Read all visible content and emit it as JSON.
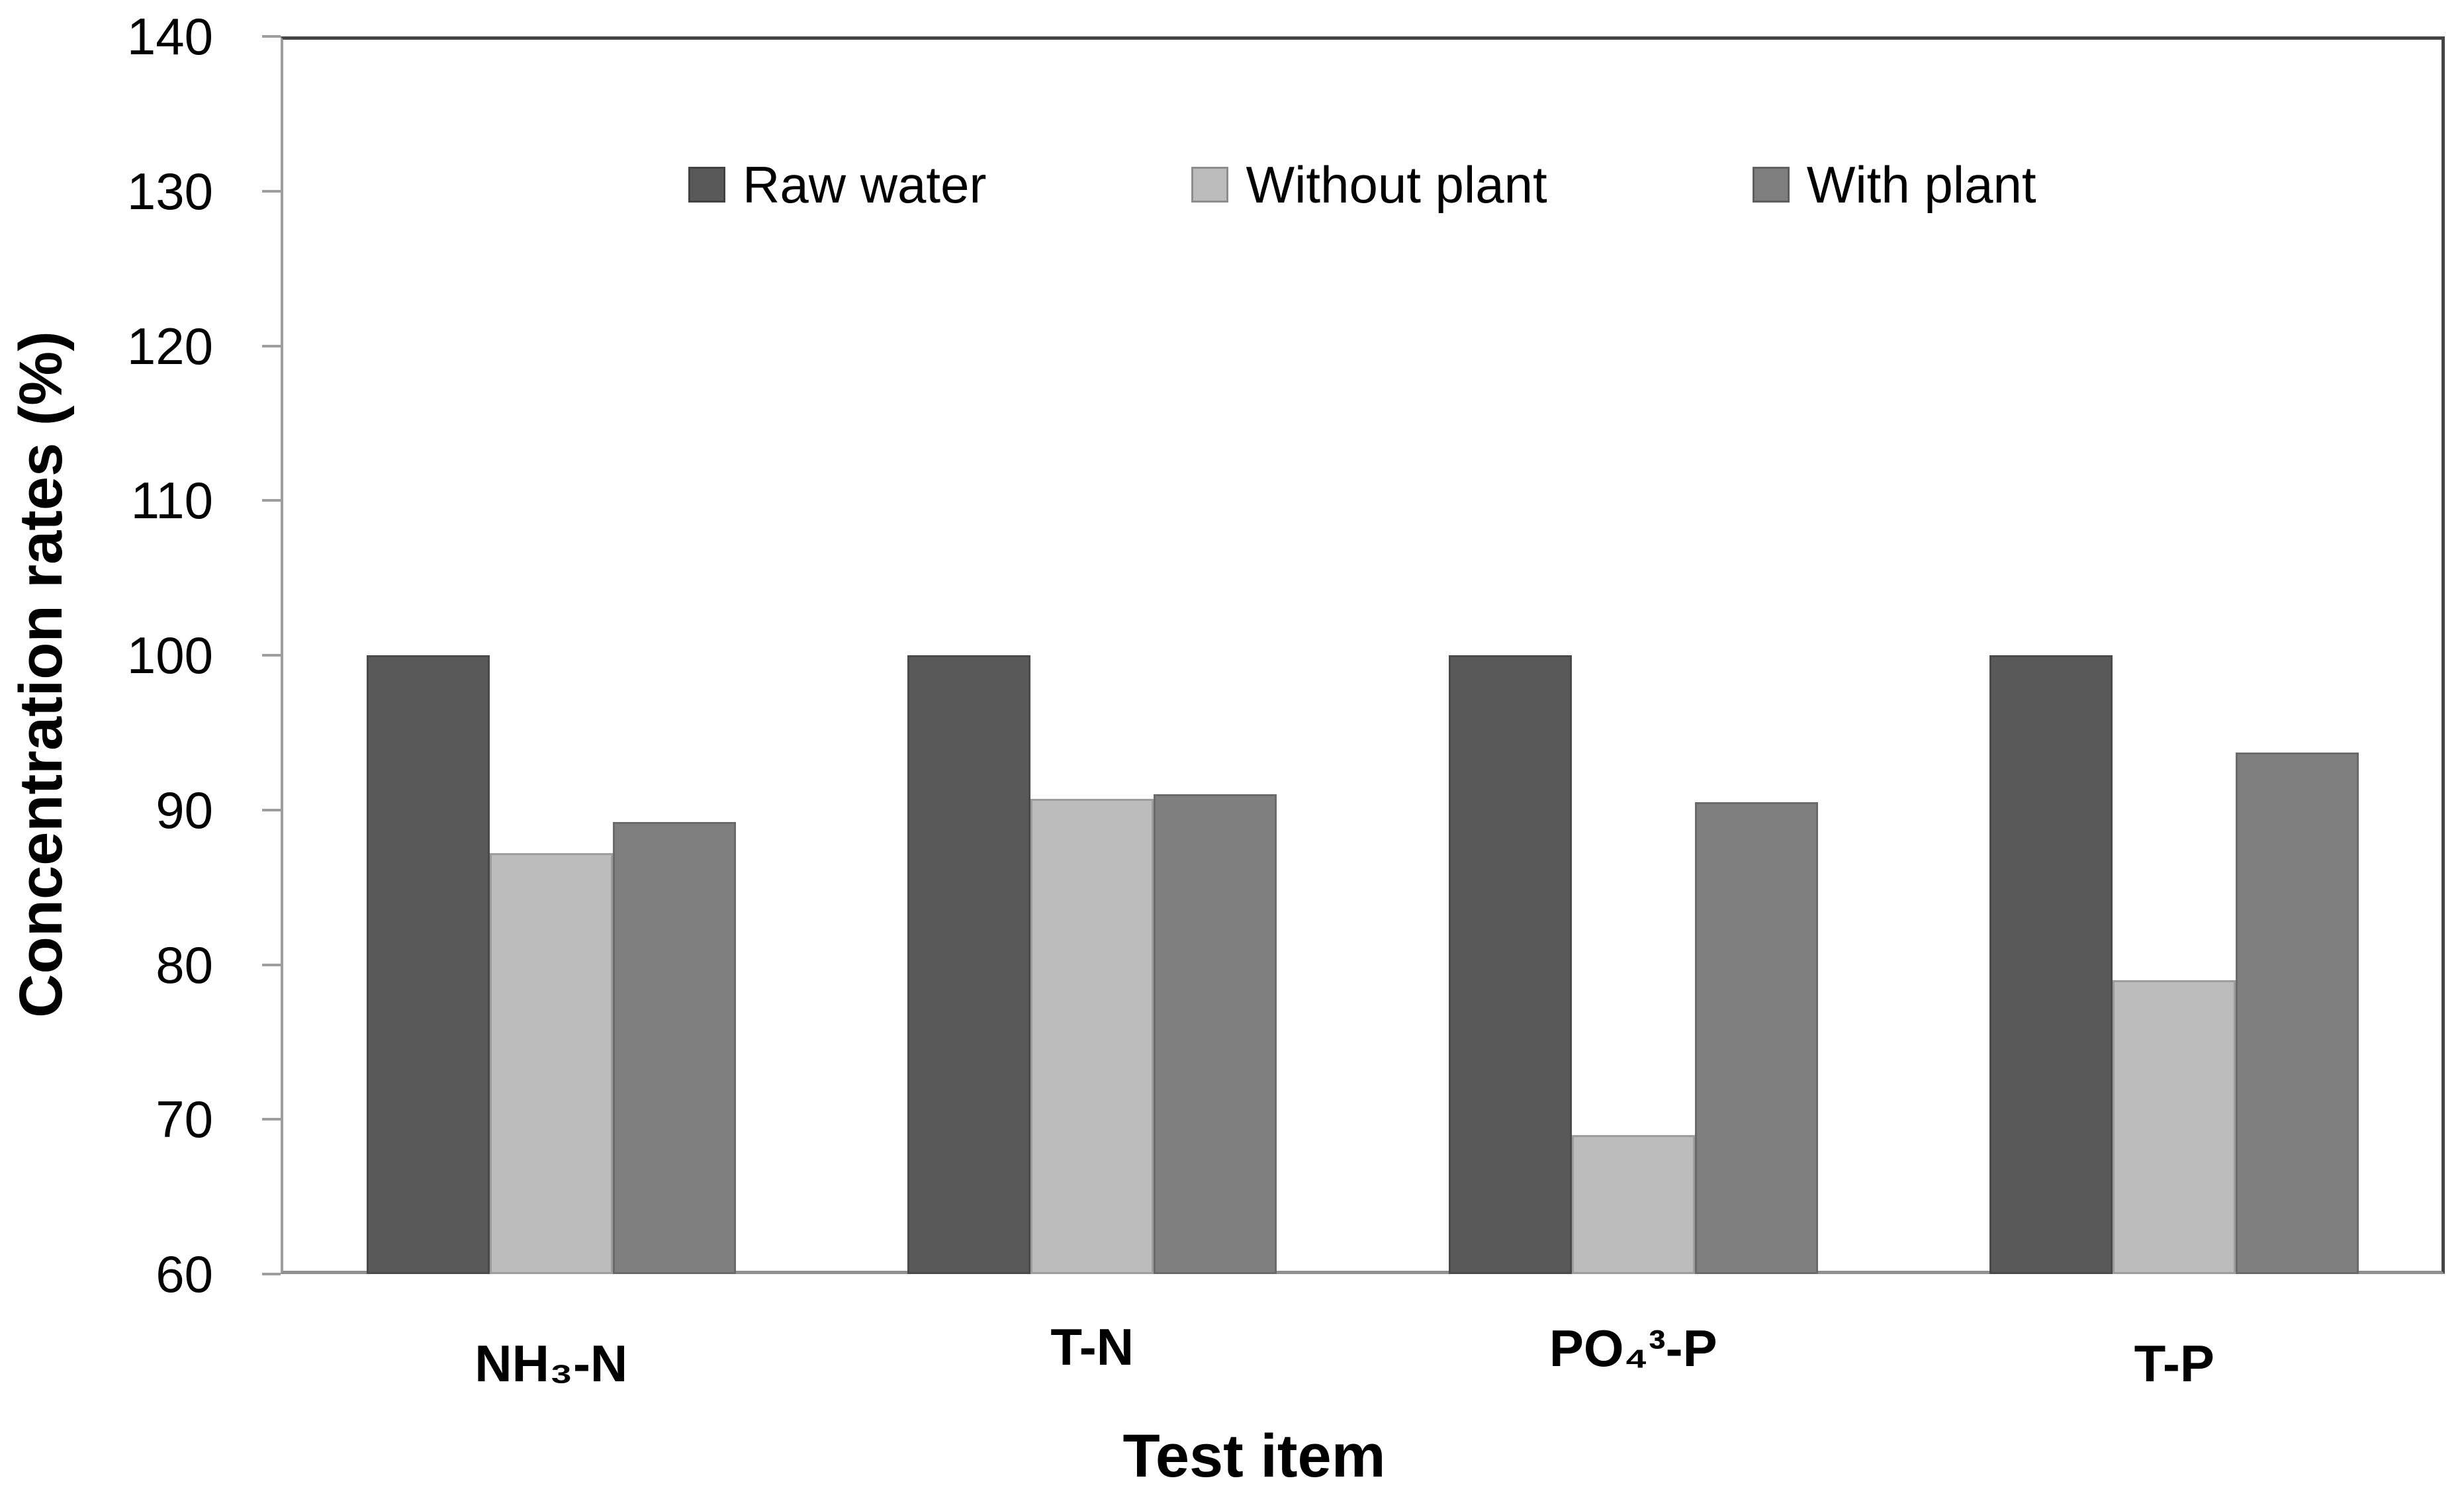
{
  "chart_data": {
    "type": "bar",
    "title": "",
    "xlabel": "Test item",
    "ylabel": "Concentration rates (%)",
    "ylim": [
      60,
      140
    ],
    "yticks": [
      60,
      70,
      80,
      90,
      100,
      110,
      120,
      130,
      140
    ],
    "grid": false,
    "legend_position": "top-inside-horizontal",
    "categories": [
      "NH₃-N",
      "T-N",
      "PO₄³-P",
      "T-P"
    ],
    "series": [
      {
        "name": "Raw water",
        "color": "#595959",
        "values": [
          100,
          100,
          100,
          100
        ]
      },
      {
        "name": "Without plant",
        "color": "#bcbcbc",
        "values": [
          87.2,
          90.7,
          69,
          79
        ]
      },
      {
        "name": "With plant",
        "color": "#7f7f7f",
        "values": [
          89.2,
          91,
          90.5,
          93.7
        ]
      }
    ]
  }
}
